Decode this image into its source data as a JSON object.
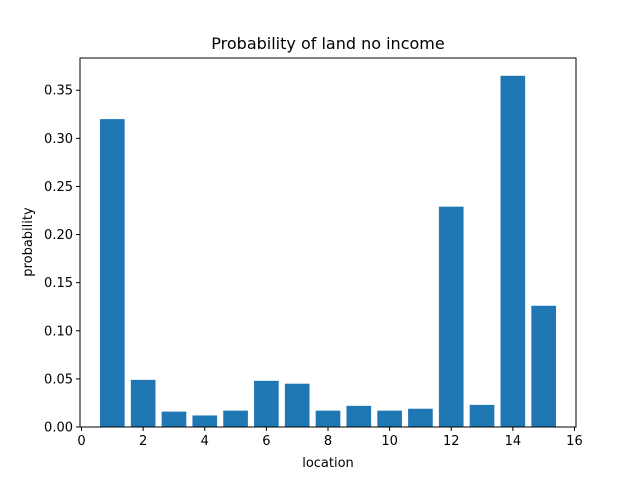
{
  "chart_data": {
    "type": "bar",
    "title": "Probability of land no income",
    "xlabel": "location",
    "ylabel": "probability",
    "x": [
      1,
      2,
      3,
      4,
      5,
      6,
      7,
      8,
      9,
      10,
      11,
      12,
      13,
      14,
      15
    ],
    "values": [
      0.32,
      0.049,
      0.016,
      0.012,
      0.017,
      0.048,
      0.045,
      0.017,
      0.022,
      0.017,
      0.019,
      0.229,
      0.023,
      0.365,
      0.126
    ],
    "bar_width": 0.8,
    "xlim": [
      -0.05,
      16.05
    ],
    "ylim": [
      0,
      0.3835
    ],
    "xticks": [
      0,
      2,
      4,
      6,
      8,
      10,
      12,
      14,
      16
    ],
    "xtick_labels": [
      "0",
      "2",
      "4",
      "6",
      "8",
      "10",
      "12",
      "14",
      "16"
    ],
    "yticks": [
      0,
      0.05,
      0.1,
      0.15,
      0.2,
      0.25,
      0.3,
      0.35
    ],
    "ytick_labels": [
      "0.00",
      "0.05",
      "0.10",
      "0.15",
      "0.20",
      "0.25",
      "0.30",
      "0.35"
    ],
    "grid": false,
    "bar_color": "#1f77b4"
  }
}
